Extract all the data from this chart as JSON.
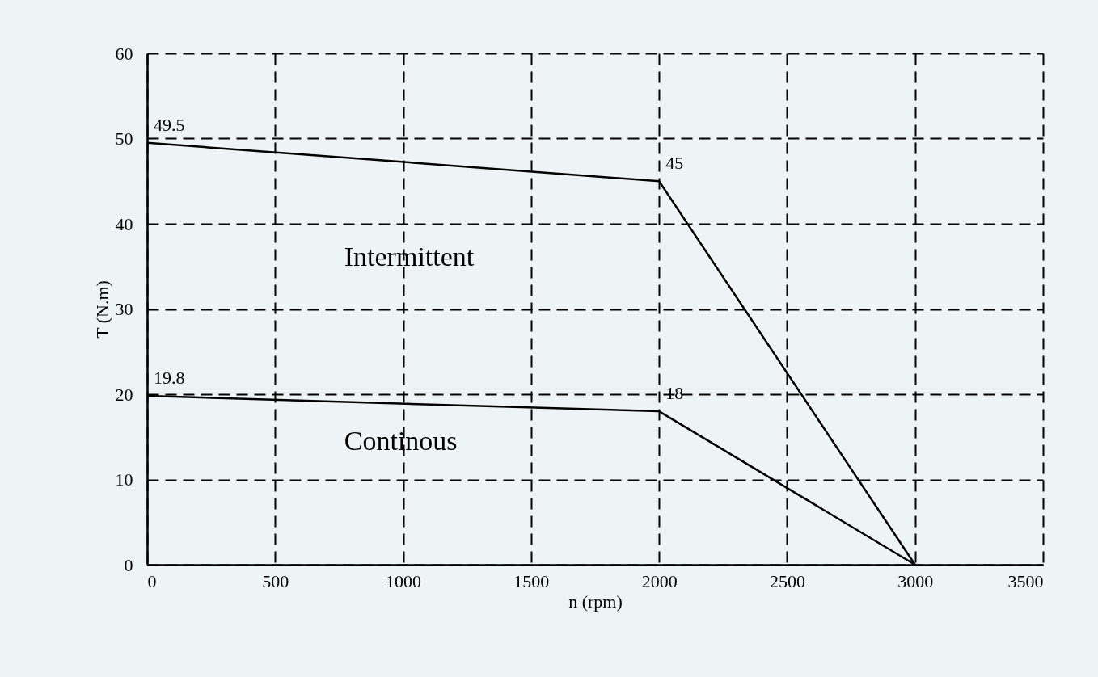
{
  "chart_data": {
    "type": "line",
    "xlabel": "n (rpm)",
    "ylabel": "T (N.m)",
    "x": [
      0,
      2000,
      3000
    ],
    "series": [
      {
        "name": "Intermittent",
        "color": "#000000",
        "values": [
          49.5,
          45,
          0
        ],
        "value_labels": [
          "49.5",
          "45",
          null
        ]
      },
      {
        "name": "Continous",
        "color": "#000000",
        "values": [
          19.8,
          18,
          0
        ],
        "value_labels": [
          "19.8",
          "18",
          null
        ]
      }
    ],
    "xlim": [
      0,
      3500
    ],
    "xticks": [
      0,
      500,
      1000,
      1500,
      2000,
      2500,
      3000,
      3500
    ],
    "ylim": [
      0,
      60
    ],
    "yticks": [
      0,
      10,
      20,
      30,
      40,
      50,
      60
    ],
    "grid": true,
    "line_style": "solid",
    "marker": "none",
    "legend": false
  }
}
